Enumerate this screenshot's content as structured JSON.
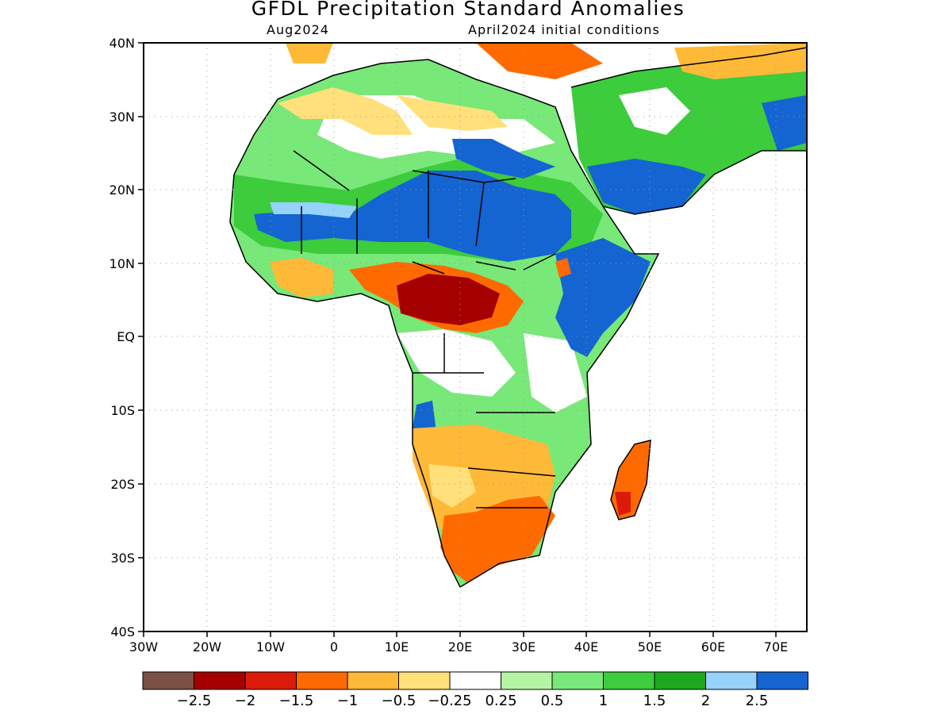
{
  "title": "GFDL Precipitation Standard Anomalies",
  "subtitle_left": "Aug2024",
  "subtitle_right": "April2024 initial conditions",
  "axes": {
    "lat_labels": [
      "40N",
      "30N",
      "20N",
      "10N",
      "EQ",
      "10S",
      "20S",
      "30S",
      "40S"
    ],
    "lon_labels": [
      "30W",
      "20W",
      "10W",
      "0",
      "10E",
      "20E",
      "30E",
      "40E",
      "50E",
      "60E",
      "70E"
    ],
    "lat_range": [
      -40,
      40
    ],
    "lon_range": [
      -30,
      75
    ],
    "grid": "dotted"
  },
  "colorbar": {
    "colors": [
      "#7a5144",
      "#a50000",
      "#dc1a0a",
      "#ff6a00",
      "#ffb938",
      "#ffe07a",
      "#ffffff",
      "#b4f5a4",
      "#78e878",
      "#3ccc3c",
      "#1ea81e",
      "#96d2fa",
      "#1464d2"
    ],
    "labels": [
      "−2.5",
      "−2",
      "−1.5",
      "−1",
      "−0.5",
      "−0.25",
      "0.25",
      "0.5",
      "1",
      "1.5",
      "2",
      "2.5"
    ]
  },
  "regions": [
    {
      "name": "sahel-wet-band",
      "color": "#1464d2"
    },
    {
      "name": "central-africa-dry",
      "color": "#a50000"
    },
    {
      "name": "southern-africa-dry",
      "color": "#ff6a00"
    },
    {
      "name": "east-africa-wet",
      "color": "#1464d2"
    },
    {
      "name": "madagascar-dry",
      "color": "#dc1a0a"
    },
    {
      "name": "arabia-wet",
      "color": "#1464d2"
    }
  ]
}
